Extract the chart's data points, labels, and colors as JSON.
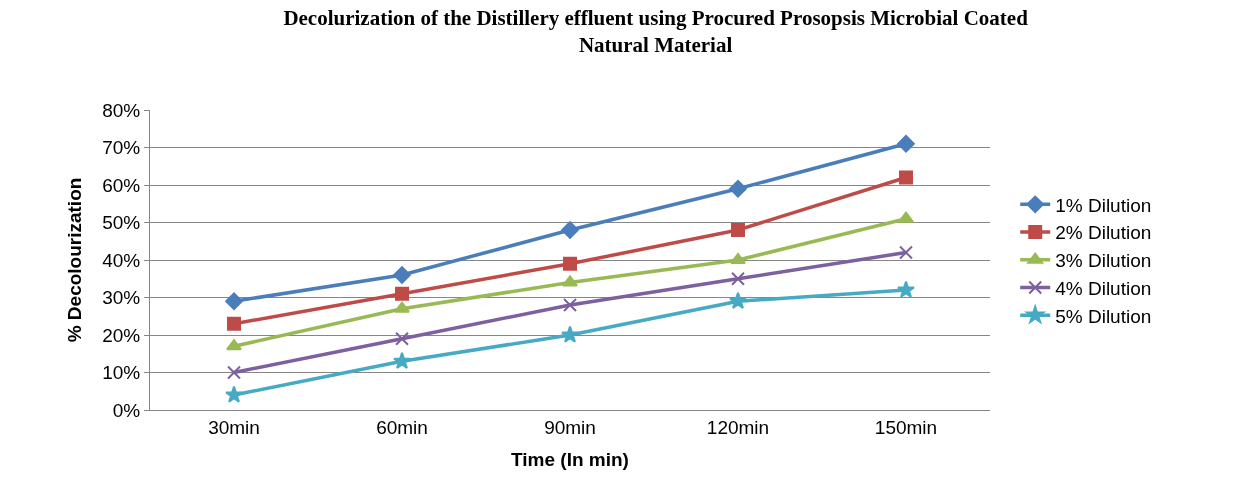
{
  "chart_data": {
    "type": "line",
    "title": "Decolurization of the Distillery effluent using Procured Prosopsis Microbial Coated Natural Material",
    "xlabel": "Time (In min)",
    "ylabel": "% Decolourization",
    "categories": [
      "30min",
      "60min",
      "90min",
      "120min",
      "150min"
    ],
    "series": [
      {
        "name": "1% Dilution",
        "color": "#4a7ebb",
        "marker": "diamond",
        "values": [
          29,
          36,
          48,
          59,
          71
        ]
      },
      {
        "name": "2% Dilution",
        "color": "#be4b48",
        "marker": "square",
        "values": [
          23,
          31,
          39,
          48,
          62
        ]
      },
      {
        "name": "3% Dilution",
        "color": "#98b954",
        "marker": "triangle",
        "values": [
          17,
          27,
          34,
          40,
          51
        ]
      },
      {
        "name": "4% Dilution",
        "color": "#7d60a0",
        "marker": "cross",
        "values": [
          10,
          19,
          28,
          35,
          42
        ]
      },
      {
        "name": "5% Dilution",
        "color": "#46aac5",
        "marker": "star",
        "values": [
          4,
          13,
          20,
          29,
          32
        ]
      }
    ],
    "ylim": [
      0,
      80
    ],
    "yticks": [
      {
        "value": 0,
        "label": "0%"
      },
      {
        "value": 10,
        "label": "10%"
      },
      {
        "value": 20,
        "label": "20%"
      },
      {
        "value": 30,
        "label": "30%"
      },
      {
        "value": 40,
        "label": "40%"
      },
      {
        "value": 50,
        "label": "50%"
      },
      {
        "value": 60,
        "label": "60%"
      },
      {
        "value": 70,
        "label": "70%"
      },
      {
        "value": 80,
        "label": "80%"
      }
    ],
    "grid": "y",
    "legend": "right",
    "line_style": "solid"
  }
}
